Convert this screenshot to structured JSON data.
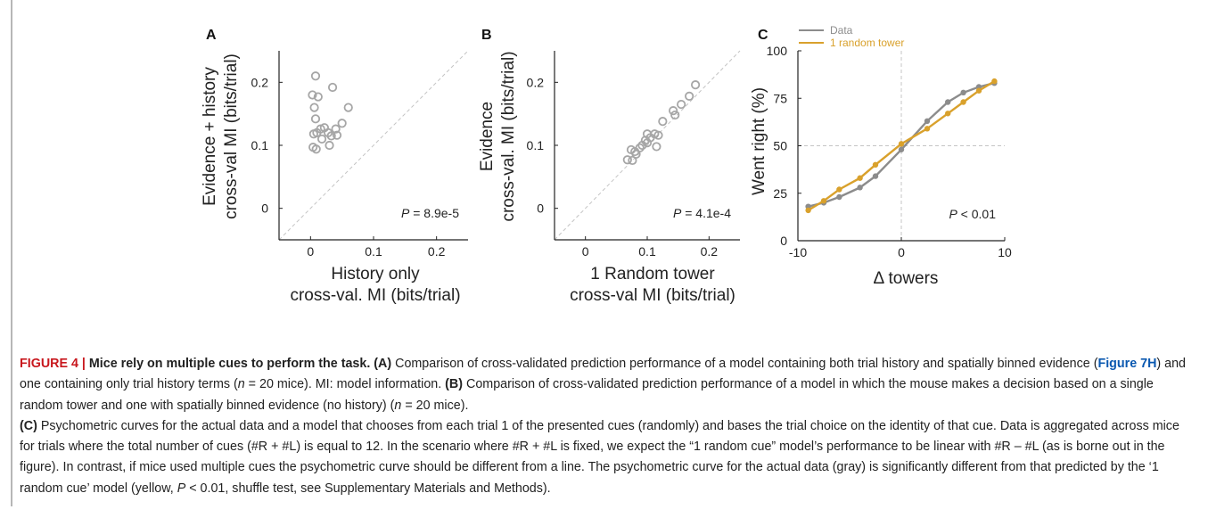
{
  "panel_letters": [
    "A",
    "B",
    "C"
  ],
  "chart_data": [
    {
      "panel": "A",
      "type": "scatter",
      "xlabel": [
        "History only",
        "cross-val. MI (bits/trial)"
      ],
      "ylabel": [
        "Evidence + history",
        "cross-val MI (bits/trial)"
      ],
      "xlim": [
        -0.05,
        0.25
      ],
      "ylim": [
        -0.05,
        0.25
      ],
      "xticks": [
        0,
        0.1,
        0.2
      ],
      "yticks": [
        0,
        0.1,
        0.2
      ],
      "identity_line": true,
      "annotation": {
        "italic": "P",
        "text": " = 8.9e-5"
      },
      "marker_color": "#a6a6a6",
      "points": [
        [
          0.008,
          0.21
        ],
        [
          0.035,
          0.192
        ],
        [
          0.003,
          0.18
        ],
        [
          0.012,
          0.177
        ],
        [
          0.006,
          0.16
        ],
        [
          0.06,
          0.16
        ],
        [
          0.008,
          0.142
        ],
        [
          0.05,
          0.135
        ],
        [
          0.022,
          0.128
        ],
        [
          0.016,
          0.126
        ],
        [
          0.04,
          0.126
        ],
        [
          0.01,
          0.12
        ],
        [
          0.028,
          0.12
        ],
        [
          0.005,
          0.118
        ],
        [
          0.033,
          0.115
        ],
        [
          0.042,
          0.116
        ],
        [
          0.018,
          0.11
        ],
        [
          0.03,
          0.1
        ],
        [
          0.004,
          0.097
        ],
        [
          0.009,
          0.094
        ]
      ]
    },
    {
      "panel": "B",
      "type": "scatter",
      "xlabel": [
        "1 Random tower",
        "cross-val MI (bits/trial)"
      ],
      "ylabel": [
        "Evidence",
        "cross-val. MI (bits/trial)"
      ],
      "xlim": [
        -0.05,
        0.25
      ],
      "ylim": [
        -0.05,
        0.25
      ],
      "xticks": [
        0,
        0.1,
        0.2
      ],
      "yticks": [
        0,
        0.1,
        0.2
      ],
      "identity_line": true,
      "annotation": {
        "italic": "P",
        "text": " = 4.1e-4"
      },
      "marker_color": "#a6a6a6",
      "points": [
        [
          0.178,
          0.196
        ],
        [
          0.168,
          0.178
        ],
        [
          0.155,
          0.165
        ],
        [
          0.142,
          0.155
        ],
        [
          0.145,
          0.148
        ],
        [
          0.125,
          0.138
        ],
        [
          0.112,
          0.118
        ],
        [
          0.118,
          0.116
        ],
        [
          0.1,
          0.118
        ],
        [
          0.105,
          0.112
        ],
        [
          0.097,
          0.108
        ],
        [
          0.092,
          0.1
        ],
        [
          0.115,
          0.098
        ],
        [
          0.088,
          0.096
        ],
        [
          0.074,
          0.093
        ],
        [
          0.08,
          0.09
        ],
        [
          0.082,
          0.086
        ],
        [
          0.068,
          0.077
        ],
        [
          0.076,
          0.076
        ],
        [
          0.1,
          0.104
        ]
      ]
    },
    {
      "panel": "C",
      "type": "line",
      "xlabel": "Δ towers",
      "ylabel": "Went right (%)",
      "xlim": [
        -10,
        10
      ],
      "ylim": [
        0,
        100
      ],
      "xticks": [
        -10,
        0,
        10
      ],
      "yticks": [
        0,
        25,
        50,
        75,
        100
      ],
      "reference_lines": {
        "x": 0,
        "y": 50
      },
      "annotation": {
        "italic": "P",
        "text": " < 0.01"
      },
      "legend_position": "top-left",
      "series": [
        {
          "name": "Data",
          "color": "#8c8c8c",
          "x": [
            -9,
            -7.5,
            -6,
            -4,
            -2.5,
            0,
            2.5,
            4.5,
            6,
            7.5,
            9
          ],
          "y": [
            18,
            20,
            23,
            28,
            34,
            48,
            63,
            73,
            78,
            81,
            83
          ]
        },
        {
          "name": "1 random tower",
          "color": "#d9a12c",
          "x": [
            -9,
            -7.5,
            -6,
            -4,
            -2.5,
            0,
            2.5,
            4.5,
            6,
            7.5,
            9
          ],
          "y": [
            16,
            21,
            27,
            33,
            40,
            51,
            59,
            67,
            73,
            79,
            84
          ]
        }
      ]
    }
  ],
  "caption": {
    "label": "FIGURE 4 |",
    "title": " Mice rely on multiple cues to perform the task. ",
    "a_tag": "(A)",
    "a1": " Comparison of cross-validated prediction performance of a model containing both trial history and spatially binned evidence (",
    "a_link": "Figure 7H",
    "a2": ") and one containing only trial history terms (",
    "a_n": "n",
    "a3": " = 20 mice). MI: model information. ",
    "b_tag": "(B)",
    "b1": " Comparison of cross-validated prediction performance of a model in which the mouse makes a decision based on a single random tower and one with spatially binned evidence (no history) (",
    "b_n": "n",
    "b2": " = 20 mice).",
    "c_tag": "(C)",
    "c1": " Psychometric curves for the actual data and a model that chooses from each trial 1 of the presented cues (randomly) and bases the trial choice on the identity of that cue. Data is aggregated across mice for trials where the total number of cues (#R + #L) is equal to 12. In the scenario where #R + #L is fixed, we expect the “1 random cue” model’s performance to be linear with #R – #L (as is borne out in the figure). In contrast, if mice used multiple cues the psychometric curve should be different from a line. The psychometric curve for the actual data (gray) is significantly different from that predicted by the ‘1 random cue’ model (yellow, ",
    "c_p": "P",
    "c2": " < 0.01, shuffle test, see Supplementary Materials and Methods)."
  }
}
